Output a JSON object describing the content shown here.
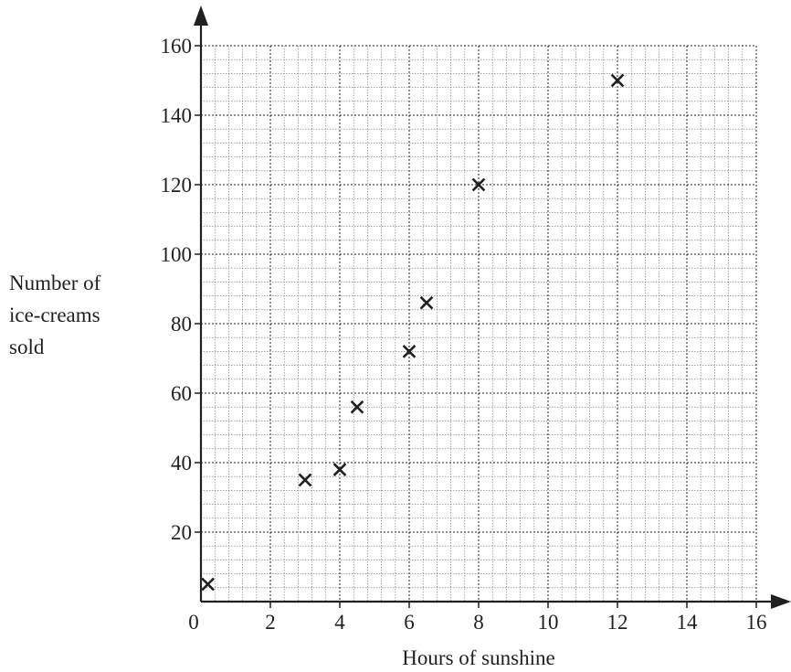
{
  "chart_data": {
    "type": "scatter",
    "title": "",
    "xlabel": "Hours of sunshine",
    "ylabel": [
      "Number of",
      "ice-creams",
      "sold"
    ],
    "xlim": [
      0,
      16
    ],
    "ylim": [
      0,
      160
    ],
    "x_ticks": [
      0,
      2,
      4,
      6,
      8,
      10,
      12,
      14,
      16
    ],
    "y_ticks": [
      20,
      40,
      60,
      80,
      100,
      120,
      140,
      160
    ],
    "grid": true,
    "marker": "cross",
    "points": [
      {
        "x": 0.2,
        "y": 5
      },
      {
        "x": 3,
        "y": 35
      },
      {
        "x": 4,
        "y": 38
      },
      {
        "x": 4.5,
        "y": 56
      },
      {
        "x": 6,
        "y": 72
      },
      {
        "x": 6.5,
        "y": 86
      },
      {
        "x": 8,
        "y": 120
      },
      {
        "x": 12,
        "y": 150
      }
    ],
    "colors": {
      "ink": "#231f20",
      "grid_minor": "#6d6e71"
    }
  }
}
